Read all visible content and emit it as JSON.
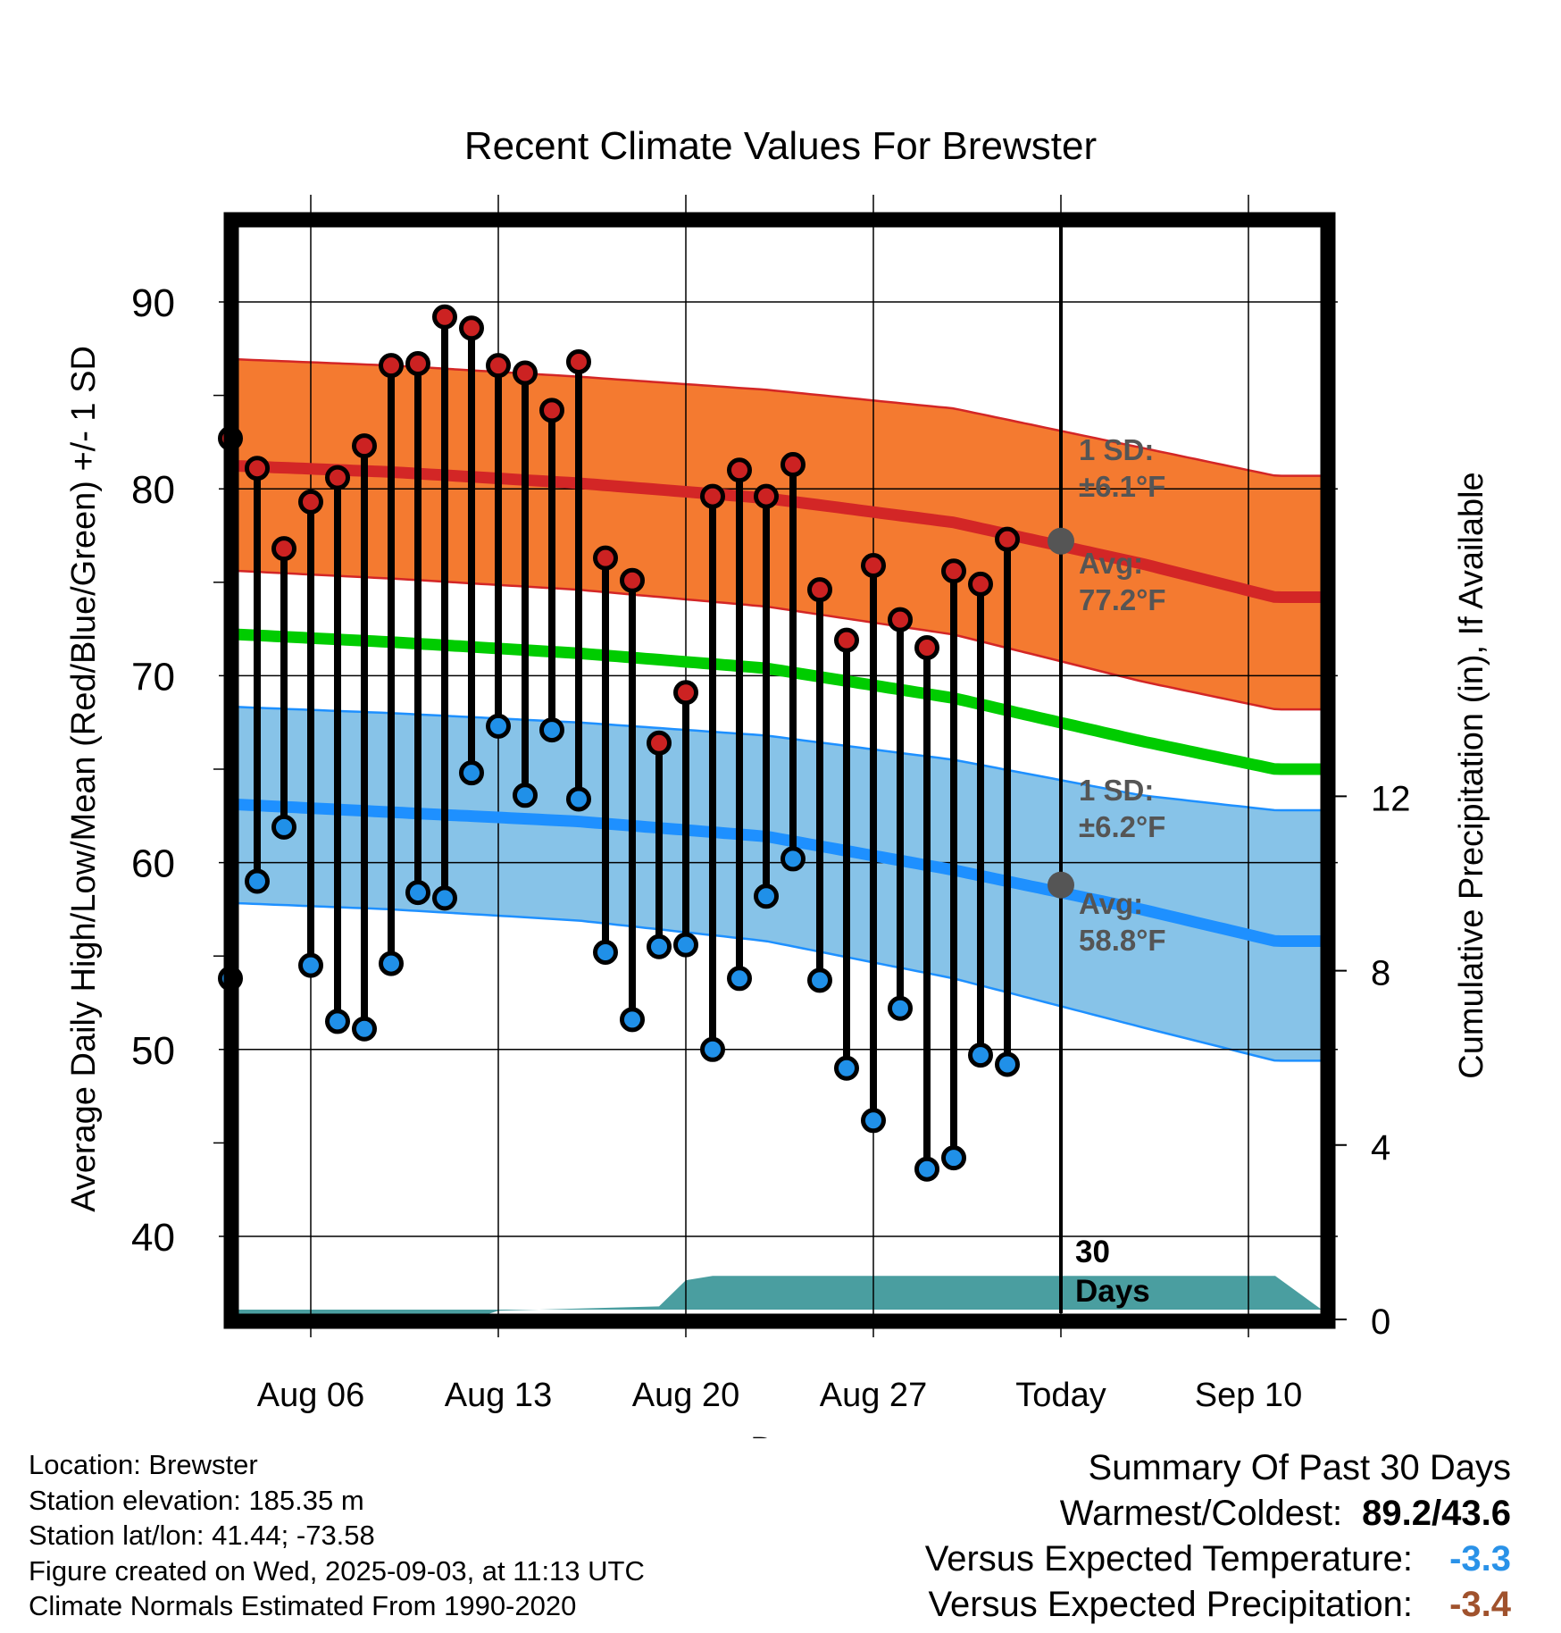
{
  "chart_data": {
    "type": "line",
    "title": "Recent Climate Values For Brewster",
    "xlabel": "Day",
    "ylabel": "Average Daily High/Low/Mean (Red/Blue/Green) +/- 1 SD",
    "y2label": "Cumulative Precipitation (in), If Available",
    "x_tick_labels": [
      "Aug 06",
      "Aug 13",
      "Aug 20",
      "Aug 27",
      "Today",
      "Sep 10"
    ],
    "y_tick_labels": [
      "40",
      "50",
      "60",
      "70",
      "80",
      "90"
    ],
    "y2_tick_labels": [
      "0",
      "4",
      "8",
      "12"
    ],
    "ylim": [
      36,
      95
    ],
    "y2lim": [
      0,
      23.8
    ],
    "x_range": [
      "2025-08-02",
      "2025-09-11"
    ],
    "today": "2025-09-03",
    "window_label": [
      "30",
      "Days"
    ],
    "observed": {
      "dates": [
        "2025-08-03",
        "2025-08-04",
        "2025-08-05",
        "2025-08-06",
        "2025-08-07",
        "2025-08-08",
        "2025-08-09",
        "2025-08-10",
        "2025-08-11",
        "2025-08-12",
        "2025-08-13",
        "2025-08-14",
        "2025-08-15",
        "2025-08-16",
        "2025-08-17",
        "2025-08-18",
        "2025-08-19",
        "2025-08-20",
        "2025-08-21",
        "2025-08-22",
        "2025-08-23",
        "2025-08-24",
        "2025-08-25",
        "2025-08-26",
        "2025-08-27",
        "2025-08-28",
        "2025-08-29",
        "2025-08-30",
        "2025-08-31",
        "2025-09-01",
        "2025-09-02"
      ],
      "high": [
        82.7,
        81.1,
        76.8,
        79.3,
        80.6,
        82.3,
        86.6,
        86.7,
        89.2,
        88.6,
        86.6,
        86.2,
        84.2,
        86.8,
        76.3,
        75.1,
        66.4,
        69.1,
        79.6,
        81.0,
        79.6,
        81.3,
        74.6,
        71.9,
        75.9,
        73.0,
        71.5,
        75.6,
        74.9,
        77.3,
        null
      ],
      "low": [
        53.8,
        59.0,
        61.9,
        54.5,
        51.5,
        51.1,
        54.6,
        58.4,
        58.1,
        64.8,
        67.3,
        63.6,
        67.1,
        63.4,
        55.2,
        51.6,
        55.5,
        55.6,
        50.0,
        53.8,
        58.2,
        60.2,
        53.7,
        49.0,
        46.2,
        52.2,
        43.6,
        44.2,
        49.7,
        49.2,
        null
      ]
    },
    "normals": {
      "dates": [
        "2025-08-02",
        "2025-08-09",
        "2025-08-16",
        "2025-08-23",
        "2025-08-30",
        "2025-09-06",
        "2025-09-11"
      ],
      "high_avg": [
        81.3,
        80.9,
        80.3,
        79.5,
        78.2,
        76.0,
        74.2
      ],
      "high_upper": [
        87.0,
        86.6,
        86.0,
        85.3,
        84.3,
        82.2,
        80.7
      ],
      "high_lower": [
        75.7,
        75.2,
        74.6,
        73.7,
        72.2,
        69.7,
        68.2
      ],
      "mean_avg": [
        72.3,
        71.8,
        71.2,
        70.4,
        68.8,
        66.5,
        65.0
      ],
      "low_avg": [
        63.2,
        62.7,
        62.2,
        61.4,
        59.6,
        57.5,
        55.8
      ],
      "low_upper": [
        68.4,
        68.0,
        67.5,
        66.8,
        65.5,
        63.6,
        62.8
      ],
      "low_lower": [
        57.9,
        57.5,
        56.9,
        55.8,
        53.8,
        51.2,
        49.4
      ]
    },
    "precip": {
      "dates": [
        "2025-08-02",
        "2025-08-11",
        "2025-08-12",
        "2025-08-13",
        "2025-08-19",
        "2025-08-20",
        "2025-08-21",
        "2025-08-30",
        "2025-09-02",
        "2025-09-11"
      ],
      "cumulative": [
        0,
        0,
        0,
        0.2,
        0.3,
        0.9,
        1.0,
        1.0,
        1.0,
        1.0
      ]
    },
    "annotations": {
      "high_sd_label": [
        "1 SD:",
        "±6.1°F"
      ],
      "high_avg_label": [
        "Avg:",
        "77.2°F"
      ],
      "low_sd_label": [
        "1 SD:",
        "±6.2°F"
      ],
      "low_avg_label": [
        "Avg:",
        "58.8°F"
      ],
      "high_avg_today": 77.2,
      "low_avg_today": 58.8
    },
    "colors": {
      "high_band": "#f47a30",
      "high_line": "#d32626",
      "high_dot": "#cc2222",
      "mean_line": "#00cc00",
      "low_band": "#87c3e8",
      "low_line": "#1e90ff",
      "low_dot": "#2090e8",
      "precip": "#4a9ea0",
      "annotation": "#555555"
    },
    "grid": true
  },
  "footer": {
    "location": "Location: Brewster",
    "elevation": "Station elevation: 185.35 m",
    "latlon": "Station lat/lon: 41.44; -73.58",
    "created": "Figure created on Wed, 2025-09-03, at 11:13 UTC",
    "normals_period": "Climate Normals Estimated From 1990-2020"
  },
  "summary": {
    "title": "Summary Of Past 30 Days",
    "warmest_coldest_label": "Warmest/Coldest:",
    "warmest_coldest_value": "89.2/43.6",
    "temp_label": "Versus Expected Temperature:",
    "temp_value": "-3.3",
    "temp_color": "#2a92e8",
    "precip_label": "Versus Expected Precipitation:",
    "precip_value": "-3.4",
    "precip_color": "#a0522d"
  }
}
